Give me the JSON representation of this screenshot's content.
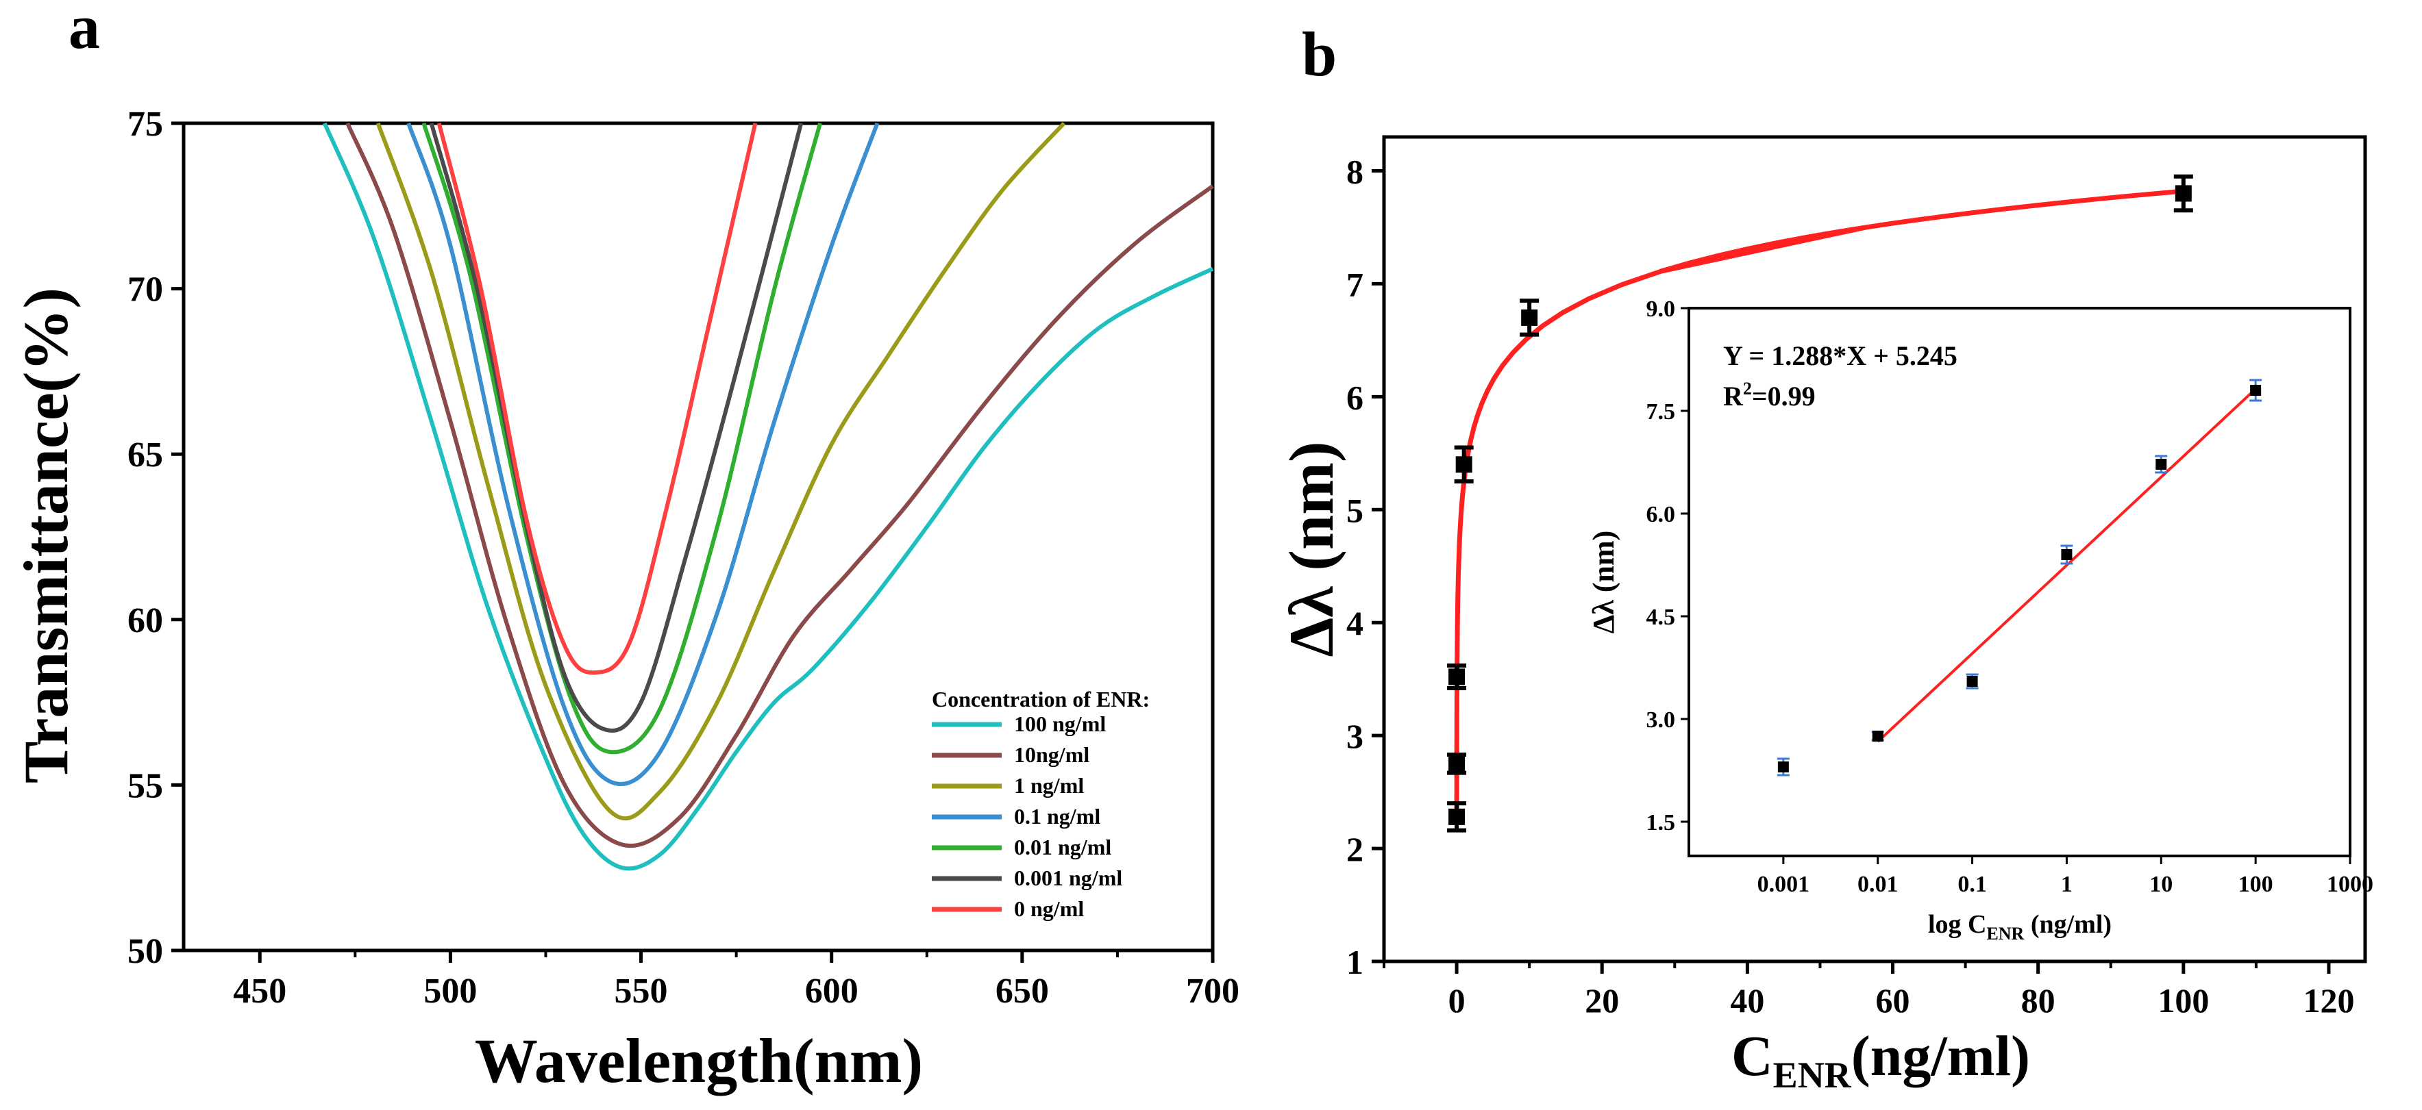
{
  "panel_a": {
    "label": "a",
    "chart_data": {
      "type": "line",
      "title": "",
      "xlabel": "Wavelength(nm)",
      "ylabel": "Transmittance(%)",
      "xlim": [
        430,
        700
      ],
      "ylim": [
        50,
        75
      ],
      "xticks": [
        "450",
        "500",
        "550",
        "600",
        "650",
        "700"
      ],
      "yticks": [
        "50",
        "55",
        "60",
        "65",
        "70",
        "75"
      ],
      "legend_title": "Concentration of ENR:",
      "legend_position": "bottom-right",
      "series": [
        {
          "name": "100 ng/ml",
          "color": "#1fbfbf",
          "x": [
            467,
            480,
            495,
            510,
            525,
            535,
            545,
            555,
            565,
            575,
            585,
            595,
            610,
            625,
            640,
            655,
            670,
            685,
            700
          ],
          "y": [
            75,
            71.5,
            66,
            60.3,
            55.8,
            53.5,
            52.5,
            52.9,
            54.3,
            56.0,
            57.5,
            58.5,
            60.5,
            62.8,
            65.2,
            67.2,
            68.8,
            69.8,
            70.6
          ]
        },
        {
          "name": "10ng/ml",
          "color": "#8b4a4a",
          "x": [
            473,
            485,
            500,
            515,
            530,
            545,
            560,
            575,
            590,
            605,
            620,
            640,
            660,
            680,
            700
          ],
          "y": [
            75,
            71.8,
            66,
            59.8,
            55.0,
            53.2,
            54.0,
            56.5,
            59.5,
            61.5,
            63.5,
            66.5,
            69.2,
            71.4,
            73.1
          ]
        },
        {
          "name": "1 ng/ml",
          "color": "#9b9b1a",
          "x": [
            481,
            495,
            510,
            525,
            542,
            555,
            570,
            585,
            600,
            615,
            630,
            645,
            661
          ],
          "y": [
            75,
            70.5,
            64,
            58.0,
            54.2,
            54.8,
            57.5,
            61.5,
            65.3,
            68.0,
            70.6,
            73.0,
            75
          ]
        },
        {
          "name": "0.1 ng/ml",
          "color": "#3a8fd0",
          "x": [
            489,
            500,
            515,
            530,
            542,
            555,
            570,
            585,
            600,
            612
          ],
          "y": [
            75,
            71.3,
            63.5,
            57.3,
            55.1,
            56.0,
            60.2,
            66.0,
            71.3,
            75
          ]
        },
        {
          "name": "0.01 ng/ml",
          "color": "#2fae2f",
          "x": [
            493,
            505,
            520,
            532,
            542,
            555,
            570,
            585,
            597
          ],
          "y": [
            75,
            70.5,
            62.5,
            57.5,
            56.0,
            57.3,
            62.8,
            70.0,
            75
          ]
        },
        {
          "name": "0.001 ng/ml",
          "color": "#4a4a4a",
          "x": [
            495,
            507,
            520,
            530,
            540,
            550,
            562,
            575,
            592
          ],
          "y": [
            75,
            70.0,
            62.8,
            58.3,
            56.7,
            57.5,
            62.0,
            67.5,
            75
          ]
        },
        {
          "name": "0 ng/ml",
          "color": "#ff4040",
          "x": [
            497,
            508,
            520,
            530,
            538,
            547,
            557,
            568,
            580
          ],
          "y": [
            75,
            70.0,
            63.0,
            59.2,
            58.4,
            59.3,
            63.5,
            69.0,
            75
          ]
        }
      ]
    }
  },
  "panel_b": {
    "label": "b",
    "chart_data": {
      "type": "scatter",
      "xlabel_main": "C",
      "xlabel_sub": "ENR",
      "xlabel_tail": "(ng/ml)",
      "ylabel": "Δλ (nm)",
      "xlim": [
        -10,
        125
      ],
      "ylim": [
        1,
        8.3
      ],
      "xticks": [
        "0",
        "20",
        "40",
        "60",
        "80",
        "100",
        "120"
      ],
      "yticks": [
        "1",
        "2",
        "3",
        "4",
        "5",
        "6",
        "7",
        "8"
      ],
      "points": {
        "x": [
          0,
          0,
          0,
          1,
          10,
          100
        ],
        "y": [
          2.28,
          2.75,
          3.52,
          5.4,
          6.7,
          7.8
        ],
        "err": [
          0.12,
          0.08,
          0.1,
          0.15,
          0.15,
          0.15
        ]
      },
      "fit_color": "#ff2020",
      "inset": {
        "equation": "Y = 1.288*X + 5.245",
        "r2_prefix": "R",
        "r2_sup": "2",
        "r2_suffix": "=0.99",
        "xlabel_main": "log C",
        "xlabel_sub": "ENR",
        "xlabel_tail": " (ng/ml)",
        "ylabel": "Δλ (nm)",
        "xticks": [
          "0.001",
          "0.01",
          "0.1",
          "1",
          "10",
          "100",
          "1000"
        ],
        "yticks": [
          "1.5",
          "3.0",
          "4.5",
          "6.0",
          "7.5",
          "9.0"
        ],
        "ylim": [
          1.0,
          9.0
        ],
        "points": {
          "log_x": [
            -3,
            -2,
            -1,
            0,
            1,
            2
          ],
          "y": [
            2.3,
            2.75,
            3.55,
            5.4,
            6.72,
            7.8
          ],
          "err": [
            0.12,
            0.06,
            0.1,
            0.13,
            0.12,
            0.15
          ]
        },
        "fit_range": [
          -2,
          2
        ],
        "fit_slope": 1.288,
        "fit_intercept": 5.245,
        "errbar_color": "#3a7bd5"
      }
    }
  }
}
